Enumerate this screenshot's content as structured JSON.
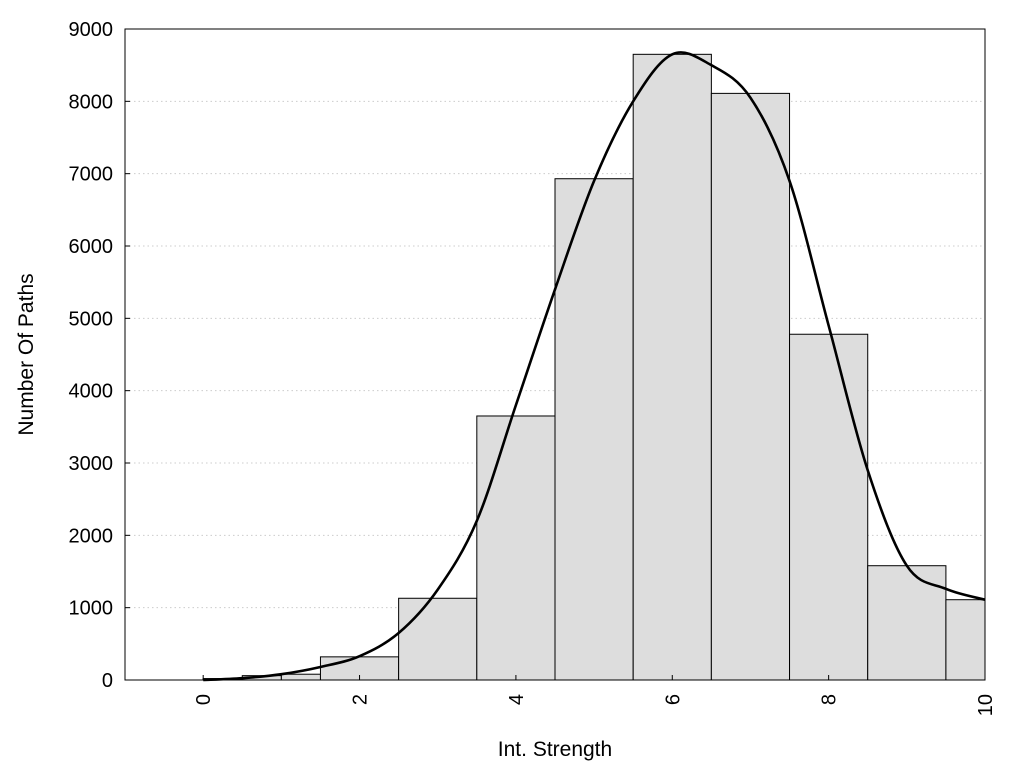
{
  "chart_data": {
    "type": "bar",
    "title": "",
    "xlabel": "Int. Strength",
    "ylabel": "Number Of Paths",
    "xlim": [
      -1,
      10
    ],
    "ylim": [
      0,
      9000
    ],
    "x_ticks": [
      0,
      2,
      4,
      6,
      8,
      10
    ],
    "y_ticks": [
      0,
      1000,
      2000,
      3000,
      4000,
      5000,
      6000,
      7000,
      8000,
      9000
    ],
    "grid": "horizontal dotted",
    "legend": "none",
    "bin_edges": [
      0,
      0.5,
      1,
      1.5,
      2.5,
      3.5,
      4.5,
      5.5,
      6.5,
      7.5,
      8.5,
      9.5,
      10
    ],
    "values": [
      20,
      60,
      80,
      320,
      1130,
      3650,
      6930,
      8650,
      8110,
      4780,
      1580,
      1110
    ],
    "density_curve": {
      "x": [
        0,
        0.5,
        1,
        1.5,
        2,
        2.5,
        3,
        3.5,
        4,
        4.5,
        5,
        5.5,
        6,
        6.5,
        7,
        7.5,
        8,
        8.5,
        9,
        9.5,
        10
      ],
      "y": [
        0,
        25,
        80,
        180,
        330,
        650,
        1250,
        2200,
        3800,
        5400,
        6900,
        8000,
        8650,
        8500,
        8050,
        6900,
        4900,
        2900,
        1580,
        1260,
        1110
      ]
    },
    "colors": {
      "bar_fill": "#dddddd",
      "bar_stroke": "#000000",
      "curve": "#000000",
      "grid": "#cccccc"
    }
  }
}
